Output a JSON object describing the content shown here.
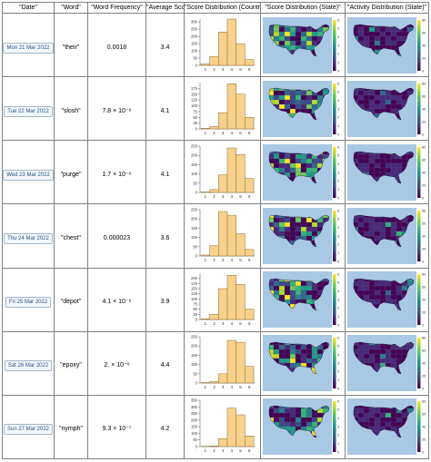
{
  "headers": [
    "\"Date\"",
    "\"Word\"",
    "\"Word Frequency\"",
    "\"Average Score\"",
    "\"Score Distribution (Country)\"",
    "\"Score Distribution (State)\"",
    "\"Activity Distribution (State)\""
  ],
  "rows": [
    {
      "date": "Mon 21 Mar 2022",
      "word": "\"their\"",
      "frequency": "0.0018",
      "average_score": "3.4"
    },
    {
      "date": "Tue 22 Mar 2022",
      "word": "\"slosh\"",
      "frequency": "7.8 × 10⁻⁶",
      "average_score": "4.1"
    },
    {
      "date": "Wed 23 Mar 2022",
      "word": "\"purge\"",
      "frequency": "1.7 × 10⁻⁶",
      "average_score": "4.1"
    },
    {
      "date": "Thu 24 Mar 2022",
      "word": "\"chest\"",
      "frequency": "0.000023",
      "average_score": "3.6"
    },
    {
      "date": "Fri 25 Mar 2022",
      "word": "\"depot\"",
      "frequency": "4.1 × 10⁻⁶",
      "average_score": "3.9"
    },
    {
      "date": "Sat 26 Mar 2022",
      "word": "\"epoxy\"",
      "frequency": "2. × 10⁻⁶",
      "average_score": "4.4"
    },
    {
      "date": "Sun 27 Mar 2022",
      "word": "\"nymph\"",
      "frequency": "9.3 × 10⁻⁷",
      "average_score": "4.2"
    }
  ],
  "chart_data": [
    {
      "type": "bar",
      "title": "Mon 21 Mar 2022",
      "categories": [
        "1",
        "2",
        "3",
        "4",
        "5",
        "6"
      ],
      "values": [
        10,
        60,
        230,
        320,
        150,
        40
      ],
      "ylim": [
        0,
        320
      ],
      "yticks": [
        0,
        50,
        100,
        150,
        200,
        250,
        300
      ]
    },
    {
      "type": "bar",
      "title": "Tue 22 Mar 2022",
      "categories": [
        "1",
        "2",
        "3",
        "4",
        "5",
        "6"
      ],
      "values": [
        2,
        10,
        70,
        195,
        150,
        50
      ],
      "ylim": [
        0,
        200
      ],
      "yticks": [
        0,
        25,
        50,
        75,
        100,
        125,
        150,
        175
      ]
    },
    {
      "type": "bar",
      "title": "Wed 23 Mar 2022",
      "categories": [
        "1",
        "2",
        "3",
        "4",
        "5",
        "6"
      ],
      "values": [
        2,
        15,
        95,
        240,
        205,
        75
      ],
      "ylim": [
        0,
        250
      ],
      "yticks": [
        0,
        50,
        100,
        150,
        200,
        250
      ]
    },
    {
      "type": "bar",
      "title": "Thu 24 Mar 2022",
      "categories": [
        "1",
        "2",
        "3",
        "4",
        "5",
        "6"
      ],
      "values": [
        5,
        55,
        240,
        220,
        120,
        35
      ],
      "ylim": [
        0,
        250
      ],
      "yticks": [
        0,
        50,
        100,
        150,
        200,
        250
      ]
    },
    {
      "type": "bar",
      "title": "Fri 25 Mar 2022",
      "categories": [
        "1",
        "2",
        "3",
        "4",
        "5",
        "6"
      ],
      "values": [
        3,
        25,
        150,
        215,
        170,
        50
      ],
      "ylim": [
        0,
        225
      ],
      "yticks": [
        0,
        25,
        50,
        75,
        100,
        125,
        150,
        175,
        200
      ]
    },
    {
      "type": "bar",
      "title": "Sat 26 Mar 2022",
      "categories": [
        "1",
        "2",
        "3",
        "4",
        "5",
        "6"
      ],
      "values": [
        2,
        8,
        50,
        230,
        220,
        90
      ],
      "ylim": [
        0,
        250
      ],
      "yticks": [
        0,
        50,
        100,
        150,
        200,
        250
      ]
    },
    {
      "type": "bar",
      "title": "Sun 27 Mar 2022",
      "categories": [
        "1",
        "2",
        "3",
        "4",
        "5",
        "6"
      ],
      "values": [
        2,
        5,
        60,
        290,
        240,
        80
      ],
      "ylim": [
        0,
        350
      ],
      "yticks": [
        0,
        50,
        100,
        150,
        200,
        250,
        300,
        350
      ]
    }
  ],
  "maps": {
    "score_state": {
      "colorbar_ticks": [
        "0",
        "1",
        "2",
        "3",
        "4",
        "5",
        "6"
      ],
      "colorscale": [
        "#440154",
        "#3b528b",
        "#21918c",
        "#5ec962",
        "#fde725"
      ]
    },
    "activity_state": {
      "colorbar_ticks": [
        "0",
        "20",
        "40",
        "60",
        "80"
      ],
      "colorscale": [
        "#440154",
        "#3b528b",
        "#21918c",
        "#5ec962",
        "#fde725"
      ]
    }
  },
  "colors": {
    "bar_fill": "#f8d28c",
    "bar_stroke": "#8b6a2b",
    "water": "#a9c8e3",
    "land": "#2c1656"
  }
}
